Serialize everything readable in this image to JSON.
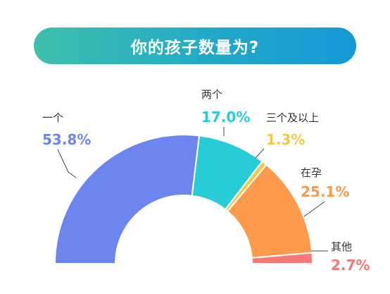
{
  "title": "你的孩子数量为?",
  "chart_data": {
    "type": "pie",
    "style": "half-donut",
    "slices": [
      {
        "label": "一个",
        "value": 53.8,
        "value_text": "53.8%",
        "color": "#6c85ef"
      },
      {
        "label": "两个",
        "value": 17.0,
        "value_text": "17.0%",
        "color": "#28ccd6"
      },
      {
        "label": "三个及以上",
        "value": 1.3,
        "value_text": "1.3%",
        "color": "#f4c842"
      },
      {
        "label": "在孕",
        "value": 25.1,
        "value_text": "25.1%",
        "color": "#fd9a4c"
      },
      {
        "label": "其他",
        "value": 2.7,
        "value_text": "2.7%",
        "color": "#f87878"
      }
    ]
  }
}
